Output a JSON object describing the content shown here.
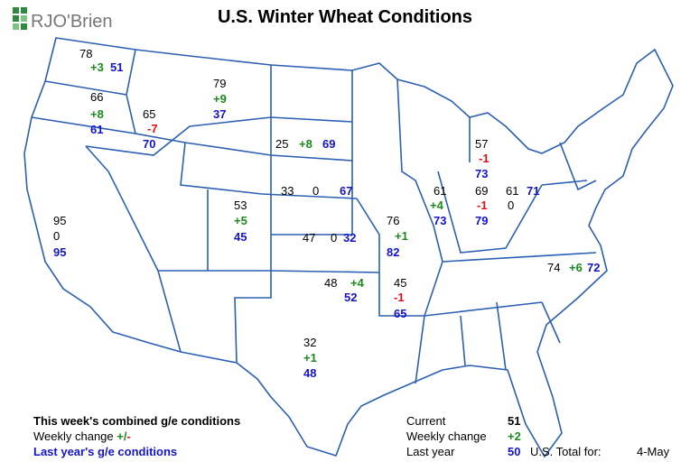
{
  "header": {
    "logo": "RJO'Brien",
    "title": "U.S. Winter Wheat Conditions"
  },
  "states": [
    {
      "current": 78,
      "change": "+3",
      "last_year": 51
    },
    {
      "current": 66,
      "change": "+8",
      "last_year": 61
    },
    {
      "current": 65,
      "change": "-7",
      "last_year": 70
    },
    {
      "current": 79,
      "change": "+9",
      "last_year": 37
    },
    {
      "current": 25,
      "change": "+8",
      "last_year": 69
    },
    {
      "current": 33,
      "change": "0",
      "last_year": 67
    },
    {
      "current": 53,
      "change": "+5",
      "last_year": 45
    },
    {
      "current": 47,
      "change": "0",
      "last_year": 32
    },
    {
      "current": 95,
      "change": "0",
      "last_year": 95
    },
    {
      "current": 76,
      "change": "+1",
      "last_year": 82
    },
    {
      "current": 61,
      "change": "+4",
      "last_year": 73
    },
    {
      "current": 69,
      "change": "-1",
      "last_year": 79
    },
    {
      "current": 61,
      "change": "0",
      "last_year": 71
    },
    {
      "current": 57,
      "change": "-1",
      "last_year": 73
    },
    {
      "current": 48,
      "change": "+4",
      "last_year": 52
    },
    {
      "current": 45,
      "change": "-1",
      "last_year": 65
    },
    {
      "current": 32,
      "change": "+1",
      "last_year": 48
    },
    {
      "current": 74,
      "change": "+6",
      "last_year": 72
    }
  ],
  "legend": {
    "current": "This week's combined g/e conditions",
    "change": "Weekly change",
    "change_plus": "+/",
    "change_minus": "-",
    "last_year": "Last year's g/e conditions"
  },
  "summary": {
    "current_label": "Current",
    "current": 51,
    "change_label": "Weekly change",
    "change": "+2",
    "last_year_label": "Last year",
    "last_year": 50,
    "total_label": "U.S. Total for:",
    "date": "4-May"
  }
}
